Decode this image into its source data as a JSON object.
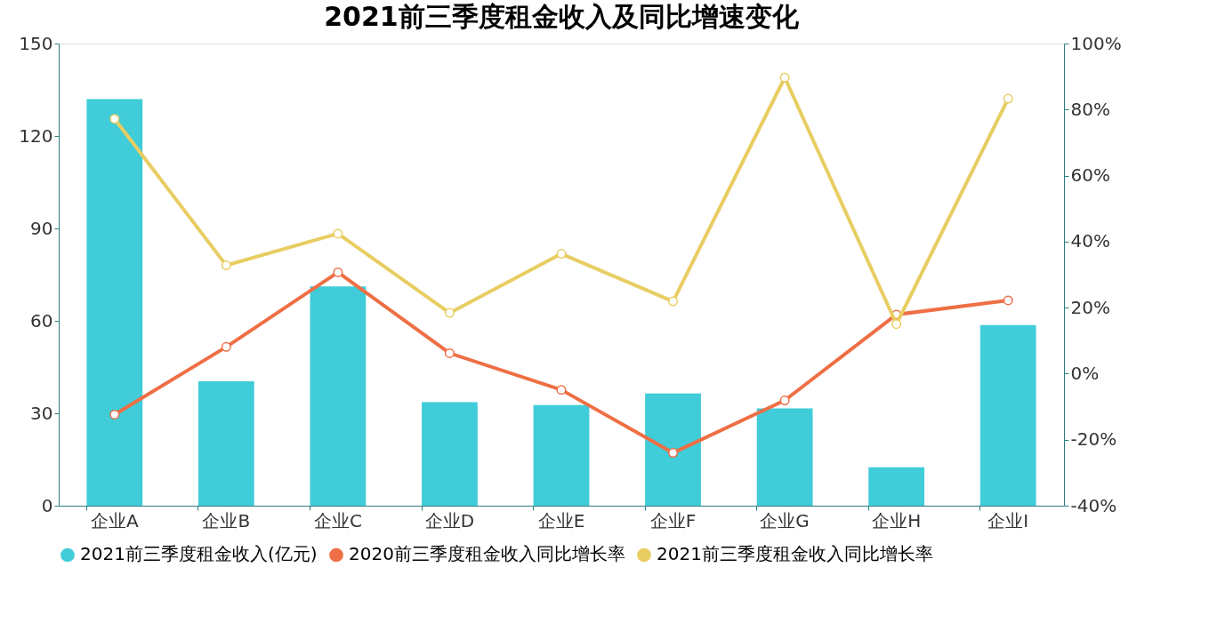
{
  "chart_data": {
    "type": "bar",
    "title": "2021前三季度租金收入及同比增速变化",
    "categories": [
      "企业A",
      "企业B",
      "企业C",
      "企业D",
      "企业E",
      "企业F",
      "企业G",
      "企业H",
      "企业I"
    ],
    "series": [
      {
        "name": "2021前三季度租金收入(亿元)",
        "color": "#40ccd8",
        "values": [
          132,
          40.4,
          71.2,
          33.6,
          32.7,
          36.4,
          31.6,
          12.5,
          58.6
        ]
      },
      {
        "name": "2020前三季度租金收入同比增长率",
        "type": "line",
        "axis": "y2",
        "color": "#ee6f45",
        "marker": "circle",
        "line_style": "solid",
        "values": [
          -12.4,
          8.1,
          30.7,
          6.2,
          -4.9,
          -24.0,
          -8.1,
          17.9,
          22.2
        ]
      },
      {
        "name": "2021前三季度租金收入同比增长率",
        "type": "line",
        "axis": "y2",
        "color": "#e8cd62",
        "marker": "circle",
        "line_style": "solid",
        "values": [
          77.2,
          32.8,
          42.4,
          18.4,
          36.3,
          21.9,
          89.7,
          15.0,
          83.3
        ]
      }
    ],
    "ylim": [
      0,
      150
    ],
    "yticks": [
      0,
      30,
      60,
      90,
      120,
      150
    ],
    "y2lim": [
      -40,
      100
    ],
    "y2ticks": [
      {
        "value": -40,
        "label": "-40%"
      },
      {
        "value": -20,
        "label": "-20%"
      },
      {
        "value": 0,
        "label": "0%"
      },
      {
        "value": 20,
        "label": "20%"
      },
      {
        "value": 40,
        "label": "40%"
      },
      {
        "value": 60,
        "label": "60%"
      },
      {
        "value": 80,
        "label": "80%"
      },
      {
        "value": 100,
        "label": "100%"
      }
    ],
    "grid": false,
    "legend": "bottom"
  }
}
